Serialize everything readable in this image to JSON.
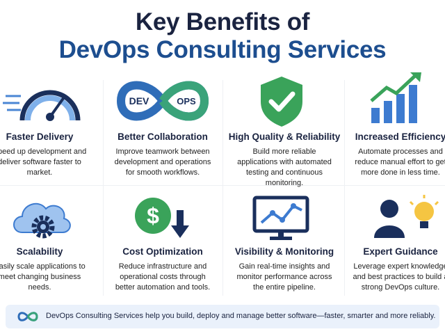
{
  "header": {
    "title_line1": "Key Benefits of",
    "title_line2": "DevOps Consulting Services"
  },
  "icon_labels": {
    "dev": "DEV",
    "ops": "OPS",
    "dollar": "$"
  },
  "cards": [
    {
      "title": "Faster Delivery",
      "description": "Speed up development and deliver software faster to market."
    },
    {
      "title": "Better Collaboration",
      "description": "Improve teamwork between development and operations for smooth workflows."
    },
    {
      "title": "High Quality & Reliability",
      "description": "Build more reliable applications with automated testing and continuous monitoring."
    },
    {
      "title": "Increased Efficiency",
      "description": "Automate processes and reduce manual effort to get more done in less time."
    },
    {
      "title": "Scalability",
      "description": "Easily scale applications to meet changing business needs."
    },
    {
      "title": "Cost Optimization",
      "description": "Reduce infrastructure and operational costs through better automation and tools."
    },
    {
      "title": "Visibility & Monitoring",
      "description": "Gain real-time insights and monitor performance across the entire pipeline."
    },
    {
      "title": "Expert Guidance",
      "description": "Leverage expert knowledge and best practices to build a strong DevOps culture."
    }
  ],
  "footer": {
    "text": "DevOps Consulting Services help you build, deploy and manage better software—faster, smarter and more reliably."
  }
}
